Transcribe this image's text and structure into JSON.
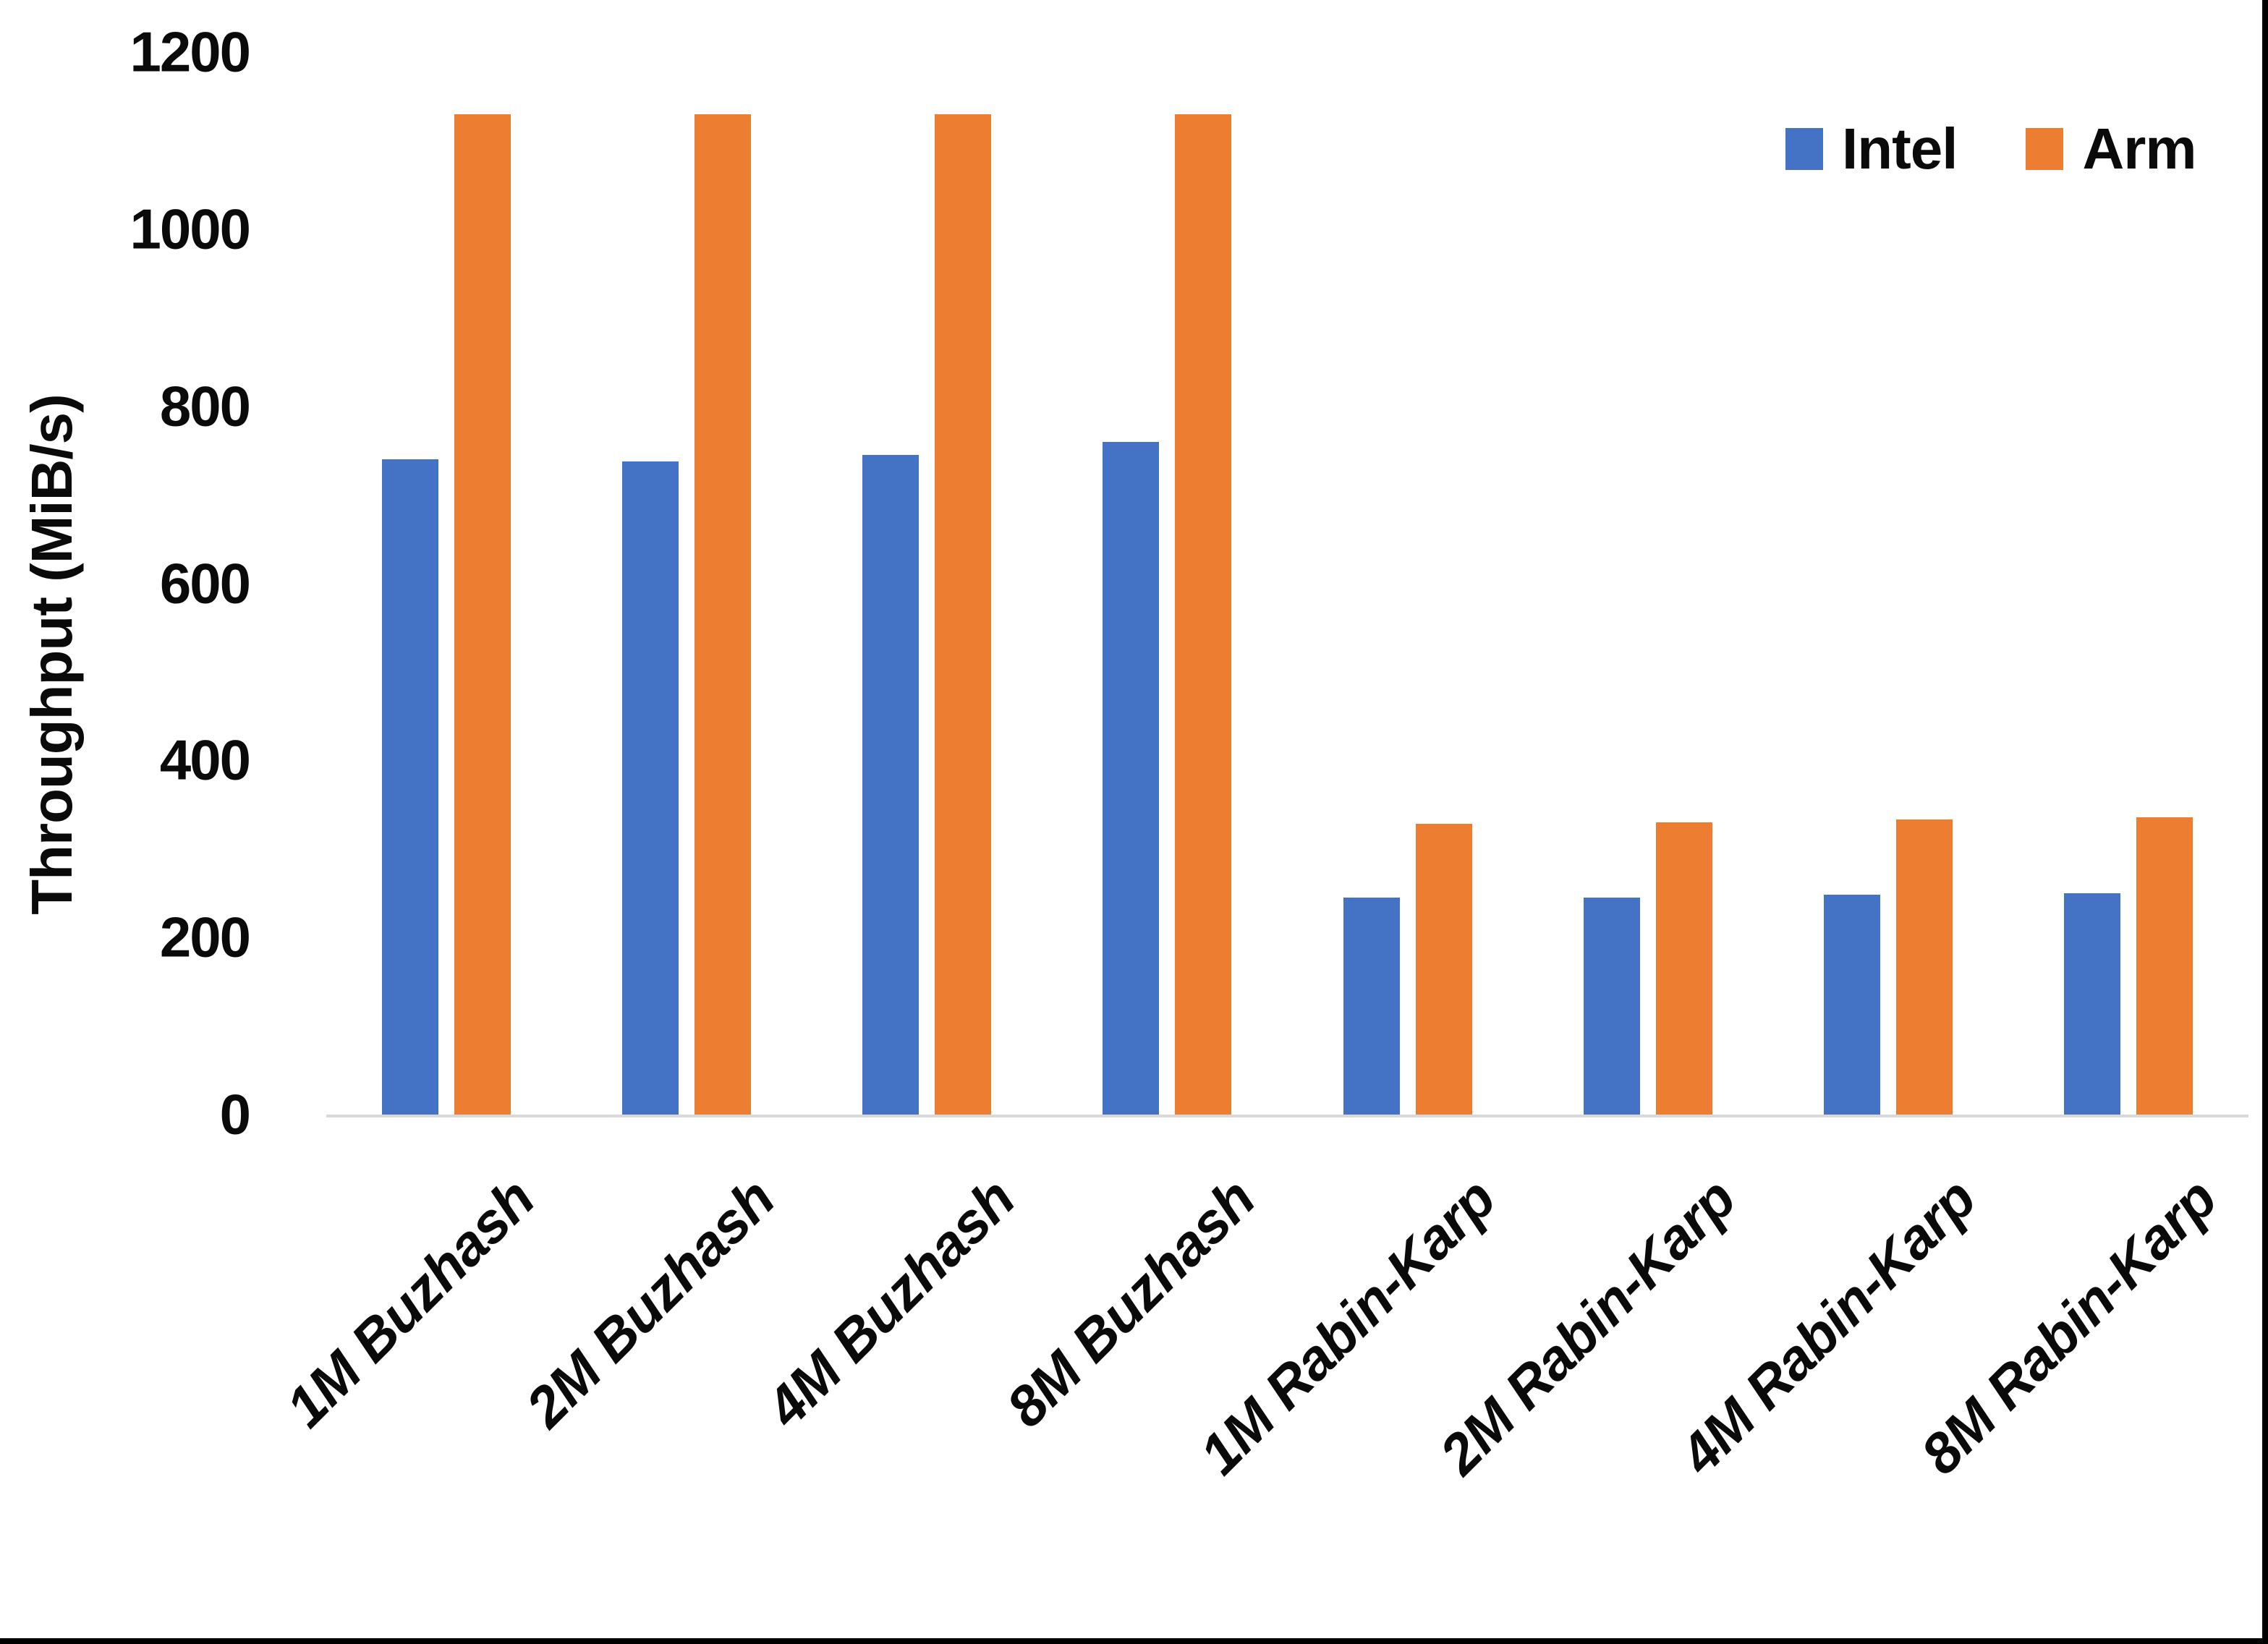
{
  "figure": {
    "background": "#ffffff",
    "edge_border_color": "#000000",
    "axis_line_color": "#d9d9d9",
    "text_color": "#0a0a0a"
  },
  "chart_data": {
    "type": "bar",
    "title": "",
    "xlabel": "",
    "ylabel": "Throughput (MiB/s)",
    "ylim": [
      0,
      1200
    ],
    "yticks": [
      0,
      200,
      400,
      600,
      800,
      1000,
      1200
    ],
    "grid": false,
    "legend_position": "top-right",
    "categories": [
      "1M Buzhash",
      "2M Buzhash",
      "4M Buzhash",
      "8M Buzhash",
      "1M Rabin-Karp",
      "2M Rabin-Karp",
      "4M Rabin-Karp",
      "8M Rabin-Karp"
    ],
    "series": [
      {
        "name": "Intel",
        "color": "#4472C4",
        "values": [
          740,
          738,
          745,
          760,
          245,
          245,
          248,
          250
        ]
      },
      {
        "name": "Arm",
        "color": "#ED7D31",
        "values": [
          1130,
          1130,
          1130,
          1130,
          328,
          330,
          333,
          336
        ]
      }
    ]
  }
}
